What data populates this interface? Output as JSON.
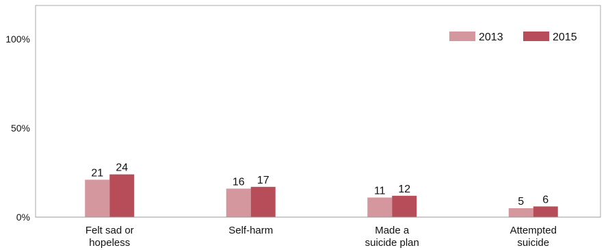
{
  "chart_data": {
    "type": "bar",
    "categories": [
      [
        "Felt sad or",
        "hopeless"
      ],
      [
        "Self-harm"
      ],
      [
        "Made a",
        "suicide plan"
      ],
      [
        "Attempted",
        "suicide"
      ]
    ],
    "series": [
      {
        "name": "2013",
        "values": [
          21,
          16,
          11,
          5
        ],
        "color": "#d4979d"
      },
      {
        "name": "2015",
        "values": [
          24,
          17,
          12,
          6
        ],
        "color": "#b84d5a"
      }
    ],
    "ylim": [
      0,
      100
    ],
    "yticks": [
      {
        "value": 0,
        "label": "0%"
      },
      {
        "value": 50,
        "label": "50%"
      },
      {
        "value": 100,
        "label": "100%"
      }
    ],
    "grid": false,
    "legend_position": "top-right",
    "colors": {
      "axis": "#999999",
      "frame": "#aaaaaa"
    }
  }
}
